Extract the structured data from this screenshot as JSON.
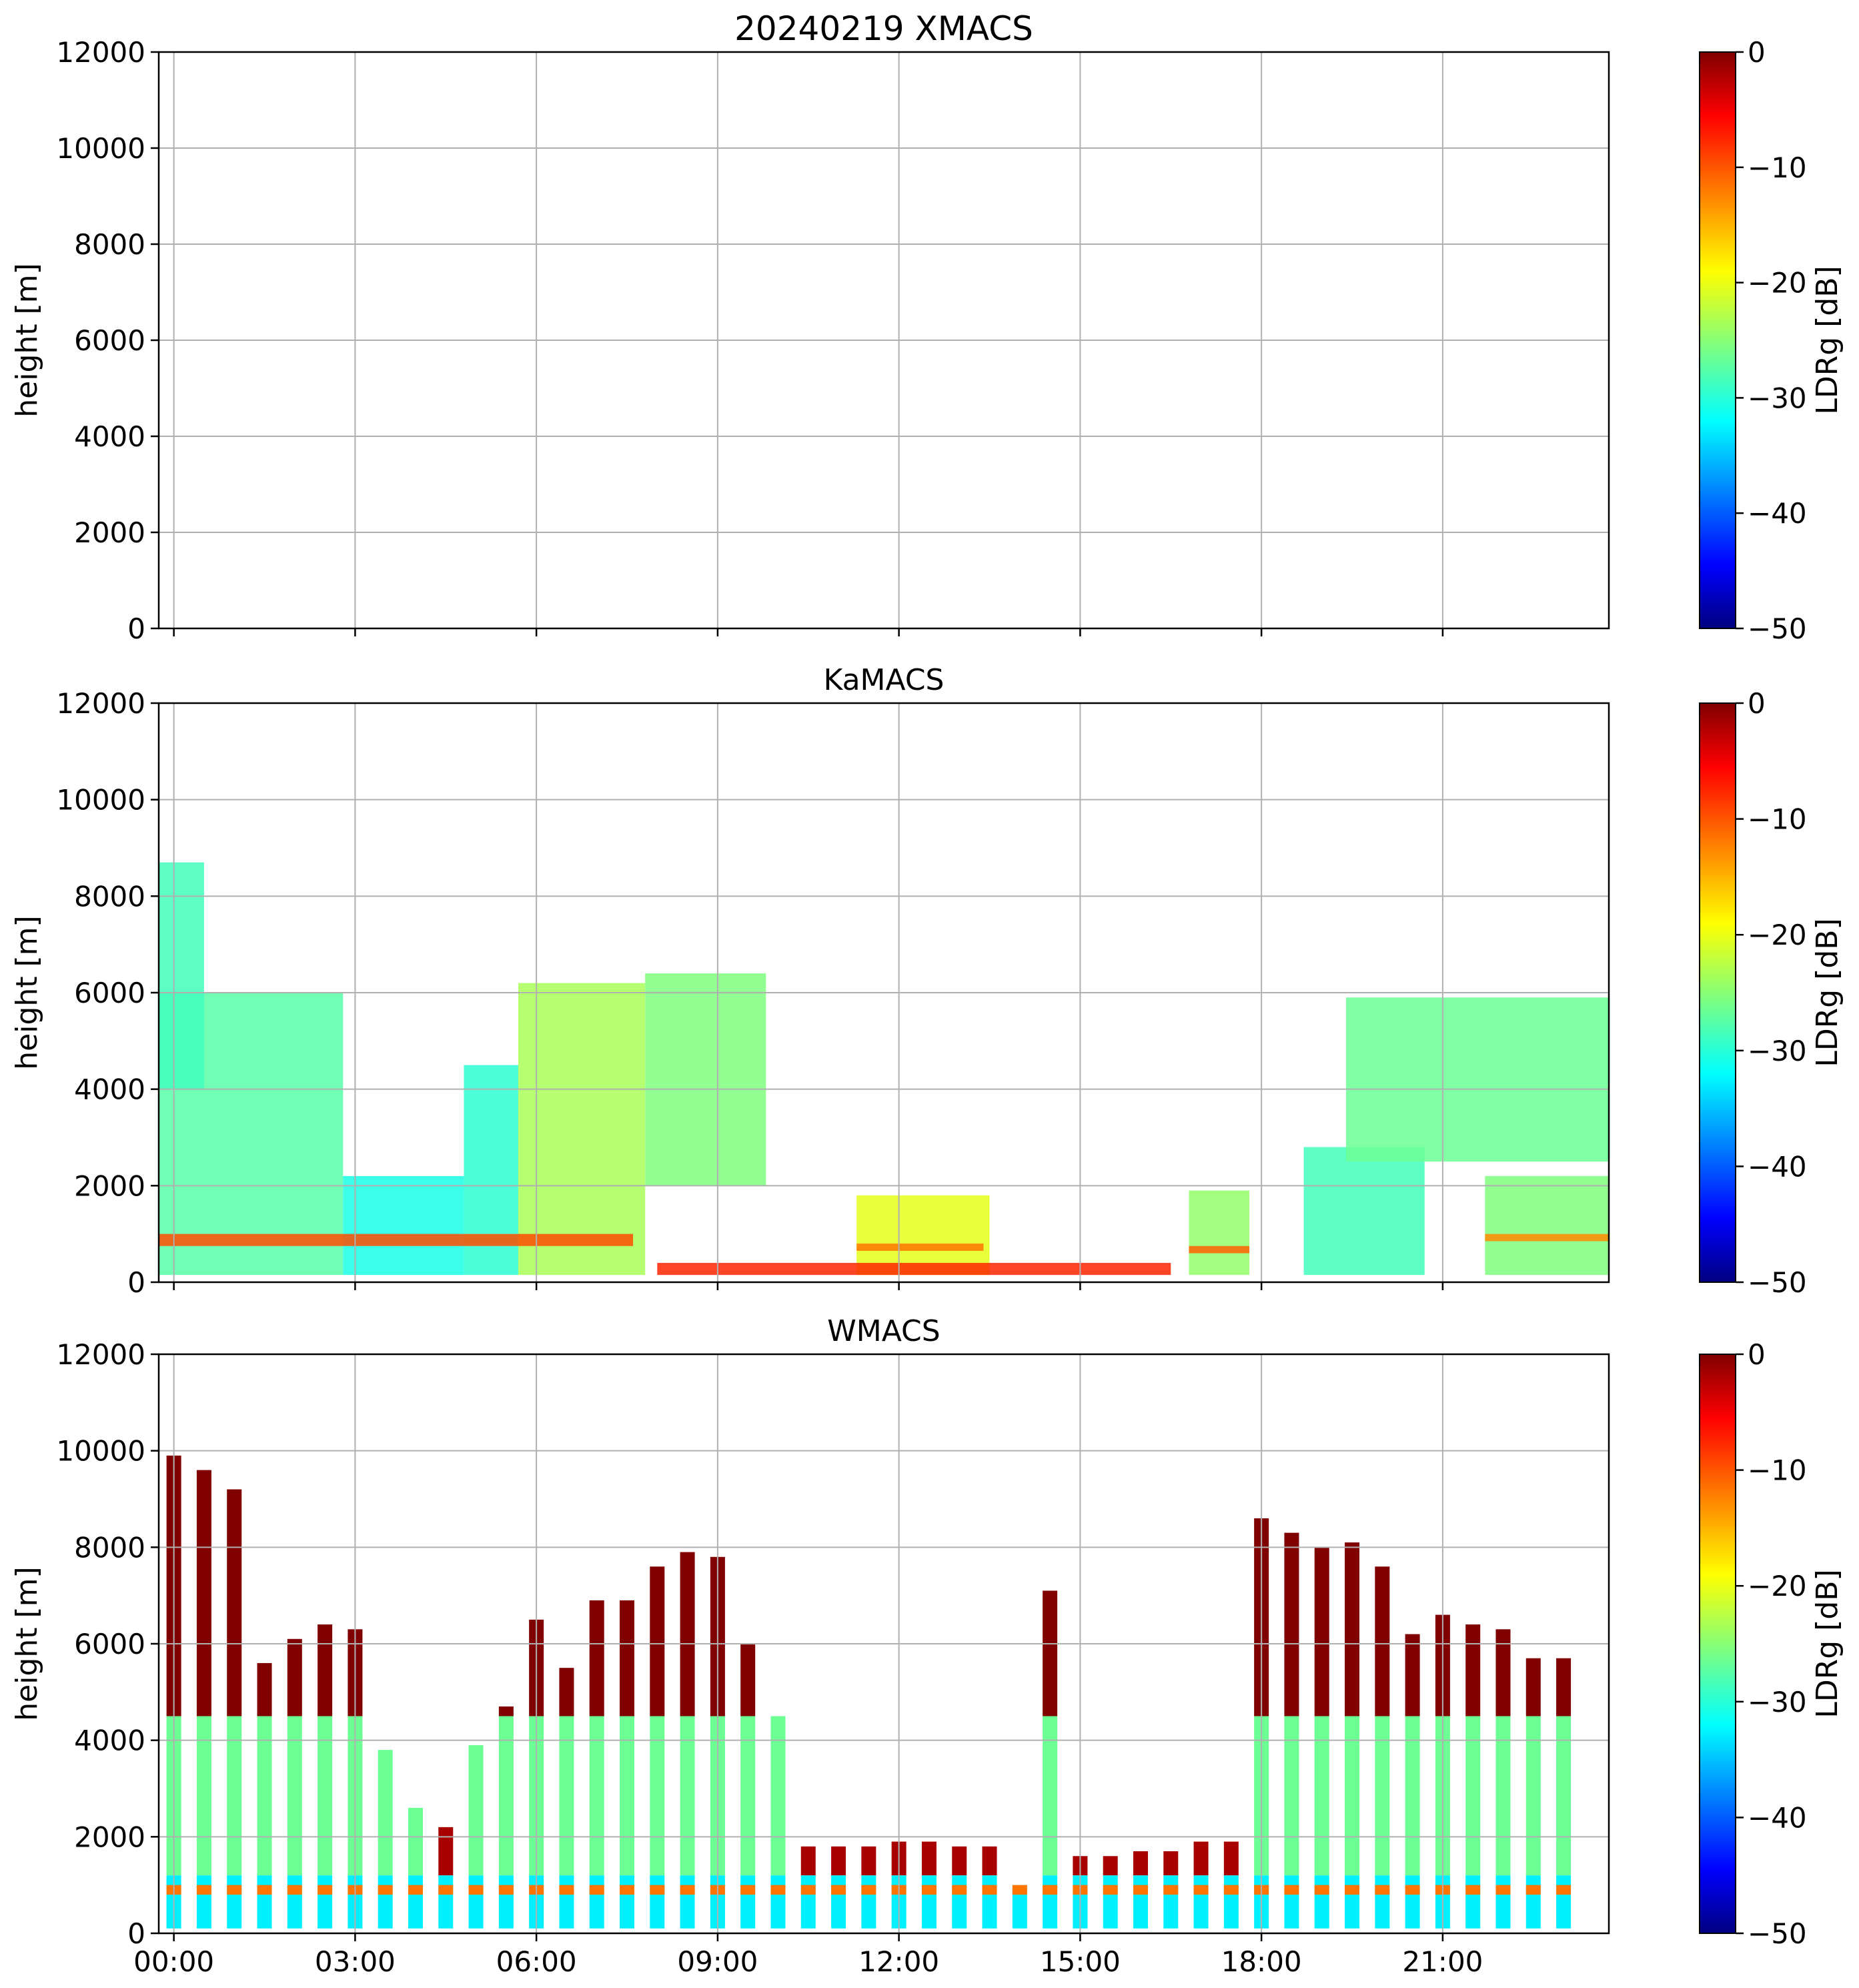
{
  "chart_data": [
    {
      "type": "heatmap",
      "title": "20240219 XMACS",
      "ylabel": "height [m]",
      "ylim": [
        0,
        12000
      ],
      "yticks": [
        0,
        2000,
        4000,
        6000,
        8000,
        10000,
        12000
      ],
      "xlim_hours": [
        -0.25,
        23.75
      ],
      "xtick_hours": [
        0,
        3,
        6,
        9,
        12,
        15,
        18,
        21
      ],
      "colorbar": {
        "label": "LDRg [dB]",
        "range": [
          -50,
          0
        ],
        "ticks": [
          0,
          -10,
          -20,
          -30,
          -40,
          -50
        ]
      },
      "features": []
    },
    {
      "type": "heatmap",
      "title": "KaMACS",
      "ylabel": "height [m]",
      "ylim": [
        0,
        12000
      ],
      "yticks": [
        0,
        2000,
        4000,
        6000,
        8000,
        10000,
        12000
      ],
      "xlim_hours": [
        -0.25,
        23.75
      ],
      "xtick_hours": [
        0,
        3,
        6,
        9,
        12,
        15,
        18,
        21
      ],
      "colorbar": {
        "label": "LDRg [dB]",
        "range": [
          -50,
          0
        ],
        "ticks": [
          0,
          -10,
          -20,
          -30,
          -40,
          -50
        ]
      },
      "features": [
        {
          "t0": -0.25,
          "t1": 2.8,
          "h0": 150,
          "h1": 6000,
          "ldr": -27
        },
        {
          "t0": -0.25,
          "t1": 0.5,
          "h0": 4000,
          "h1": 8700,
          "ldr": -28
        },
        {
          "t0": 2.8,
          "t1": 4.8,
          "h0": 150,
          "h1": 2200,
          "ldr": -30
        },
        {
          "t0": 4.8,
          "t1": 5.7,
          "h0": 150,
          "h1": 4500,
          "ldr": -29
        },
        {
          "t0": 5.7,
          "t1": 7.8,
          "h0": 150,
          "h1": 6200,
          "ldr": -23
        },
        {
          "t0": 7.8,
          "t1": 9.8,
          "h0": 2000,
          "h1": 6400,
          "ldr": -25
        },
        {
          "t0": 11.3,
          "t1": 13.5,
          "h0": 150,
          "h1": 1800,
          "ldr": -20
        },
        {
          "t0": 16.8,
          "t1": 17.8,
          "h0": 150,
          "h1": 1900,
          "ldr": -24
        },
        {
          "t0": 18.7,
          "t1": 20.7,
          "h0": 150,
          "h1": 2800,
          "ldr": -28
        },
        {
          "t0": 19.4,
          "t1": 23.75,
          "h0": 2500,
          "h1": 5900,
          "ldr": -26
        },
        {
          "t0": 21.7,
          "t1": 23.75,
          "h0": 150,
          "h1": 2200,
          "ldr": -25
        },
        {
          "t0": -0.25,
          "t1": 7.6,
          "h0": 750,
          "h1": 1000,
          "ldr": -10
        },
        {
          "t0": 11.3,
          "t1": 13.4,
          "h0": 650,
          "h1": 800,
          "ldr": -12
        },
        {
          "t0": 16.8,
          "t1": 17.8,
          "h0": 600,
          "h1": 750,
          "ldr": -11
        },
        {
          "t0": 21.7,
          "t1": 23.75,
          "h0": 850,
          "h1": 1000,
          "ldr": -13
        },
        {
          "t0": 8.0,
          "t1": 16.5,
          "h0": 150,
          "h1": 400,
          "ldr": -8
        }
      ]
    },
    {
      "type": "heatmap",
      "title": "WMACS",
      "ylabel": "height [m]",
      "ylim": [
        0,
        12000
      ],
      "yticks": [
        0,
        2000,
        4000,
        6000,
        8000,
        10000,
        12000
      ],
      "xlim_hours": [
        -0.25,
        23.75
      ],
      "xtick_hours": [
        0,
        3,
        6,
        9,
        12,
        15,
        18,
        21
      ],
      "colorbar": {
        "label": "LDRg [dB]",
        "range": [
          -50,
          0
        ],
        "ticks": [
          0,
          -10,
          -20,
          -30,
          -40,
          -50
        ]
      },
      "columns": [
        {
          "t": 0.0,
          "top": 9900
        },
        {
          "t": 0.5,
          "top": 9600
        },
        {
          "t": 1.0,
          "top": 9200
        },
        {
          "t": 1.5,
          "top": 5600
        },
        {
          "t": 2.0,
          "top": 6100
        },
        {
          "t": 2.5,
          "top": 6400
        },
        {
          "t": 3.0,
          "top": 6300
        },
        {
          "t": 3.5,
          "top": 3800
        },
        {
          "t": 4.0,
          "top": 2600
        },
        {
          "t": 4.5,
          "top": 2200
        },
        {
          "t": 5.0,
          "top": 3900
        },
        {
          "t": 5.5,
          "top": 4700
        },
        {
          "t": 6.0,
          "top": 6500
        },
        {
          "t": 6.5,
          "top": 5500
        },
        {
          "t": 7.0,
          "top": 6900
        },
        {
          "t": 7.5,
          "top": 6900
        },
        {
          "t": 8.0,
          "top": 7600
        },
        {
          "t": 8.5,
          "top": 7900
        },
        {
          "t": 9.0,
          "top": 7800
        },
        {
          "t": 9.5,
          "top": 6000
        },
        {
          "t": 10.0,
          "top": 4500
        },
        {
          "t": 10.5,
          "top": 1800
        },
        {
          "t": 11.0,
          "top": 1800
        },
        {
          "t": 11.5,
          "top": 1800
        },
        {
          "t": 12.0,
          "top": 1900
        },
        {
          "t": 12.5,
          "top": 1900
        },
        {
          "t": 13.0,
          "top": 1800
        },
        {
          "t": 13.5,
          "top": 1800
        },
        {
          "t": 14.0,
          "top": 1000
        },
        {
          "t": 14.5,
          "top": 7100
        },
        {
          "t": 15.0,
          "top": 1600
        },
        {
          "t": 15.5,
          "top": 1600
        },
        {
          "t": 16.0,
          "top": 1700
        },
        {
          "t": 16.5,
          "top": 1700
        },
        {
          "t": 17.0,
          "top": 1900
        },
        {
          "t": 17.5,
          "top": 1900
        },
        {
          "t": 18.0,
          "top": 8600
        },
        {
          "t": 18.5,
          "top": 8300
        },
        {
          "t": 19.0,
          "top": 8000
        },
        {
          "t": 19.5,
          "top": 8100
        },
        {
          "t": 20.0,
          "top": 7600
        },
        {
          "t": 20.5,
          "top": 6200
        },
        {
          "t": 21.0,
          "top": 6600
        },
        {
          "t": 21.5,
          "top": 6400
        },
        {
          "t": 22.0,
          "top": 6300
        },
        {
          "t": 22.5,
          "top": 5700
        },
        {
          "t": 23.0,
          "top": 5700
        }
      ]
    }
  ],
  "xtick_labels": [
    "00:00",
    "03:00",
    "06:00",
    "09:00",
    "12:00",
    "15:00",
    "18:00",
    "21:00"
  ],
  "colorbar_tick_labels": [
    "0",
    "−10",
    "−20",
    "−30",
    "−40",
    "−50"
  ]
}
